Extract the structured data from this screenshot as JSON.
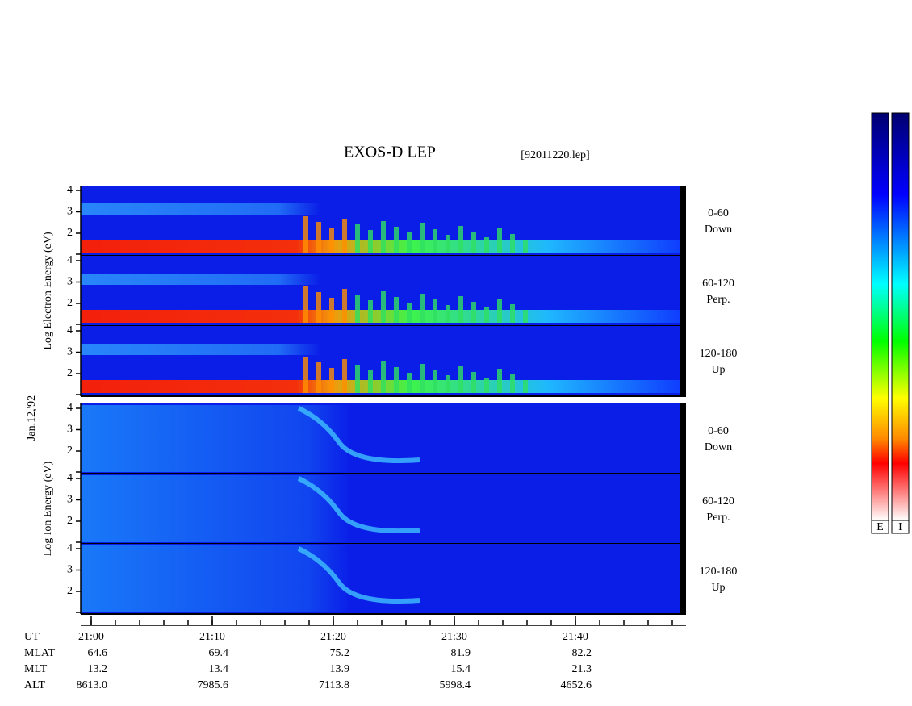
{
  "title": "EXOS-D LEP",
  "file": "[92011220.lep]",
  "date": "Jan.12,'92",
  "groups": [
    {
      "axis_label": "Log  Electron  Energy (eV)",
      "panels": [
        {
          "label": [
            "0-60",
            "Down"
          ]
        },
        {
          "label": [
            "60-120",
            "Perp."
          ]
        },
        {
          "label": [
            "120-180",
            "Up"
          ]
        }
      ]
    },
    {
      "axis_label": "Log  Ion  Energy (eV)",
      "panels": [
        {
          "label": [
            "0-60",
            "Down"
          ]
        },
        {
          "label": [
            "60-120",
            "Perp."
          ]
        },
        {
          "label": [
            "120-180",
            "Up"
          ]
        }
      ]
    }
  ],
  "energy_ticks": [
    4,
    3,
    2
  ],
  "time_label": "UT",
  "time_ticks": [
    "21:00",
    "21:10",
    "21:20",
    "21:30",
    "21:40"
  ],
  "rows": [
    {
      "label": "MLAT",
      "values": [
        "64.6",
        "69.4",
        "75.2",
        "81.9",
        "82.2"
      ]
    },
    {
      "label": "MLT",
      "values": [
        "13.2",
        "13.4",
        "13.9",
        "15.4",
        "21.3"
      ]
    },
    {
      "label": "ALT",
      "values": [
        "8613.0",
        "7985.6",
        "7113.8",
        "5998.4",
        "4652.6"
      ]
    }
  ],
  "colorbar_labels": [
    "E",
    "I"
  ]
}
